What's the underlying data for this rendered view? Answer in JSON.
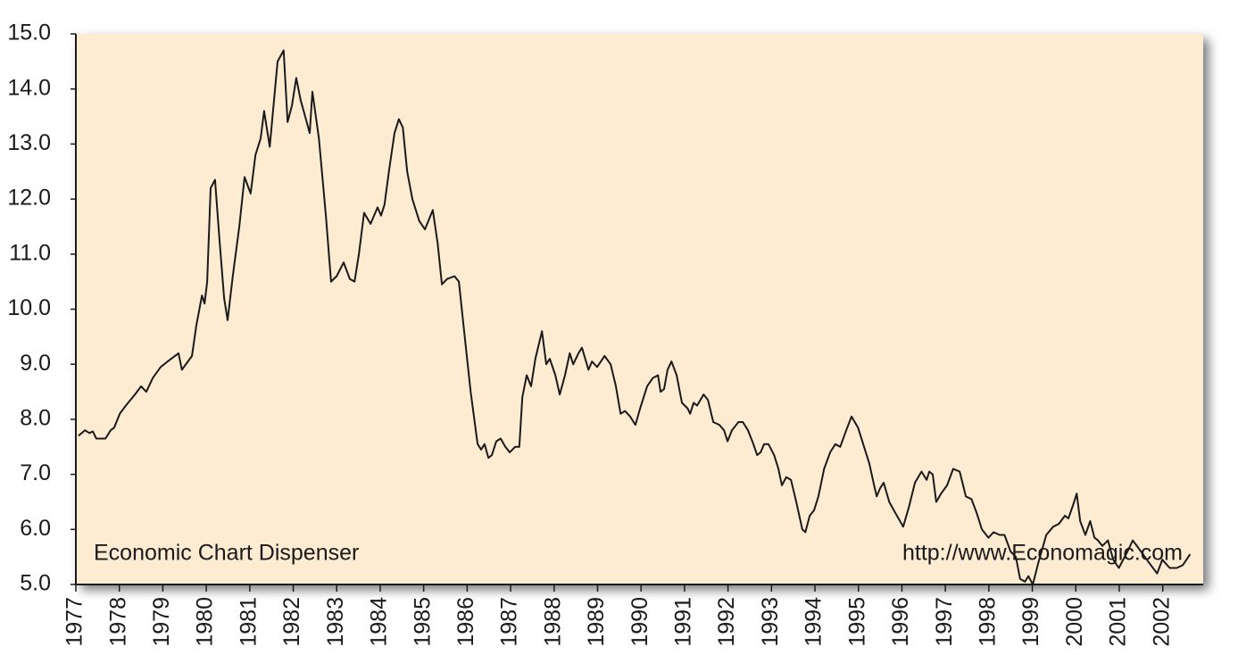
{
  "chart_data": {
    "type": "line",
    "annotations": [
      "Economic Chart Dispenser",
      "http://www.Economagic.com"
    ],
    "x": [
      1977.06,
      1977.21,
      1977.31,
      1977.39,
      1977.47,
      1977.68,
      1977.8,
      1977.88,
      1978.01,
      1978.15,
      1978.36,
      1978.5,
      1978.62,
      1978.77,
      1978.95,
      1979.11,
      1979.36,
      1979.44,
      1979.67,
      1979.77,
      1979.9,
      1979.96,
      1980.02,
      1980.1,
      1980.2,
      1980.31,
      1980.41,
      1980.49,
      1980.61,
      1980.76,
      1980.88,
      1981.02,
      1981.13,
      1981.25,
      1981.33,
      1981.46,
      1981.64,
      1981.78,
      1981.87,
      1981.97,
      1982.07,
      1982.17,
      1982.38,
      1982.44,
      1982.59,
      1982.75,
      1982.87,
      1983.0,
      1983.16,
      1983.3,
      1983.41,
      1983.51,
      1983.63,
      1983.78,
      1983.94,
      1984.02,
      1984.1,
      1984.2,
      1984.33,
      1984.43,
      1984.52,
      1984.62,
      1984.74,
      1984.9,
      1985.03,
      1985.21,
      1985.32,
      1985.42,
      1985.54,
      1985.71,
      1985.81,
      1985.93,
      1986.08,
      1986.24,
      1986.32,
      1986.4,
      1986.49,
      1986.57,
      1986.67,
      1986.77,
      1986.88,
      1986.98,
      1987.1,
      1987.2,
      1987.27,
      1987.37,
      1987.47,
      1987.57,
      1987.72,
      1987.82,
      1987.9,
      1988.03,
      1988.13,
      1988.25,
      1988.36,
      1988.44,
      1988.56,
      1988.64,
      1988.79,
      1988.87,
      1988.99,
      1989.16,
      1989.3,
      1989.42,
      1989.53,
      1989.63,
      1989.75,
      1989.87,
      1989.98,
      1990.14,
      1990.27,
      1990.39,
      1990.45,
      1990.53,
      1990.61,
      1990.7,
      1990.82,
      1990.94,
      1991.07,
      1991.13,
      1991.21,
      1991.29,
      1991.44,
      1991.54,
      1991.66,
      1991.8,
      1991.91,
      1991.99,
      1992.09,
      1992.24,
      1992.34,
      1992.46,
      1992.56,
      1992.67,
      1992.75,
      1992.83,
      1992.93,
      1993.06,
      1993.16,
      1993.24,
      1993.34,
      1993.45,
      1993.57,
      1993.71,
      1993.78,
      1993.88,
      1993.98,
      1994.08,
      1994.21,
      1994.35,
      1994.47,
      1994.58,
      1994.72,
      1994.84,
      1994.99,
      1995.09,
      1995.25,
      1995.36,
      1995.42,
      1995.5,
      1995.58,
      1995.71,
      1995.85,
      1996.03,
      1996.16,
      1996.3,
      1996.45,
      1996.57,
      1996.63,
      1996.71,
      1996.79,
      1996.9,
      1997.04,
      1997.18,
      1997.33,
      1997.47,
      1997.6,
      1997.72,
      1997.84,
      1997.99,
      1998.11,
      1998.25,
      1998.36,
      1998.5,
      1998.62,
      1998.72,
      1998.83,
      1998.91,
      1999.01,
      1999.14,
      1999.32,
      1999.48,
      1999.61,
      1999.75,
      1999.83,
      1999.94,
      2000.02,
      2000.1,
      2000.22,
      2000.33,
      2000.43,
      2000.51,
      2000.61,
      2000.74,
      2000.86,
      2000.99,
      2001.19,
      2001.31,
      2001.5,
      2001.68,
      2001.87,
      2001.99,
      2002.16,
      2002.32,
      2002.46,
      2002.63
    ],
    "series": [
      {
        "color": "#1a1a1a",
        "values": [
          7.7,
          7.8,
          7.75,
          7.78,
          7.65,
          7.65,
          7.8,
          7.85,
          8.1,
          8.25,
          8.45,
          8.6,
          8.5,
          8.75,
          8.95,
          9.05,
          9.2,
          8.9,
          9.15,
          9.7,
          10.25,
          10.1,
          10.5,
          12.2,
          12.35,
          11.2,
          10.2,
          9.8,
          10.6,
          11.5,
          12.4,
          12.1,
          12.8,
          13.1,
          13.6,
          12.95,
          14.5,
          14.7,
          13.4,
          13.7,
          14.2,
          13.8,
          13.2,
          13.95,
          13.1,
          11.7,
          10.5,
          10.6,
          10.85,
          10.55,
          10.5,
          11.0,
          11.75,
          11.55,
          11.85,
          11.7,
          11.9,
          12.5,
          13.2,
          13.45,
          13.3,
          12.5,
          12.0,
          11.6,
          11.45,
          11.8,
          11.2,
          10.45,
          10.55,
          10.6,
          10.5,
          9.6,
          8.5,
          7.55,
          7.45,
          7.55,
          7.3,
          7.35,
          7.6,
          7.65,
          7.5,
          7.4,
          7.5,
          7.5,
          8.4,
          8.8,
          8.6,
          9.1,
          9.6,
          9.0,
          9.1,
          8.8,
          8.45,
          8.8,
          9.2,
          9.0,
          9.2,
          9.3,
          8.9,
          9.05,
          8.95,
          9.15,
          9.0,
          8.6,
          8.1,
          8.15,
          8.05,
          7.9,
          8.2,
          8.6,
          8.75,
          8.8,
          8.5,
          8.55,
          8.9,
          9.05,
          8.8,
          8.3,
          8.2,
          8.1,
          8.3,
          8.25,
          8.45,
          8.35,
          7.95,
          7.9,
          7.8,
          7.6,
          7.8,
          7.95,
          7.95,
          7.8,
          7.6,
          7.35,
          7.4,
          7.55,
          7.55,
          7.35,
          7.1,
          6.8,
          6.95,
          6.9,
          6.5,
          6.0,
          5.95,
          6.25,
          6.35,
          6.6,
          7.1,
          7.4,
          7.55,
          7.5,
          7.8,
          8.05,
          7.85,
          7.6,
          7.2,
          6.8,
          6.6,
          6.75,
          6.85,
          6.5,
          6.3,
          6.05,
          6.4,
          6.85,
          7.05,
          6.9,
          7.05,
          7.0,
          6.5,
          6.65,
          6.8,
          7.1,
          7.05,
          6.6,
          6.55,
          6.3,
          6.0,
          5.85,
          5.95,
          5.9,
          5.9,
          5.6,
          5.5,
          5.1,
          5.05,
          5.15,
          5.0,
          5.4,
          5.9,
          6.05,
          6.1,
          6.25,
          6.2,
          6.45,
          6.65,
          6.15,
          5.9,
          6.15,
          5.85,
          5.8,
          5.7,
          5.8,
          5.45,
          5.3,
          5.6,
          5.8,
          5.6,
          5.4,
          5.2,
          5.45,
          5.3,
          5.3,
          5.35,
          5.55
        ]
      }
    ],
    "xlim": [
      1977,
      2002.93
    ],
    "xticks": [
      1977,
      1978,
      1979,
      1980,
      1981,
      1982,
      1983,
      1984,
      1985,
      1986,
      1987,
      1988,
      1989,
      1990,
      1991,
      1992,
      1993,
      1994,
      1995,
      1996,
      1997,
      1998,
      1999,
      2000,
      2001,
      2002
    ],
    "ylim": [
      5,
      15
    ],
    "yticks": [
      {
        "value": 5,
        "label": "5.0"
      },
      {
        "value": 6,
        "label": "6.0"
      },
      {
        "value": 7,
        "label": "7.0"
      },
      {
        "value": 8,
        "label": "8.0"
      },
      {
        "value": 9,
        "label": "9.0"
      },
      {
        "value": 10,
        "label": "10.0"
      },
      {
        "value": 11,
        "label": "11.0"
      },
      {
        "value": 12,
        "label": "12.0"
      },
      {
        "value": 13,
        "label": "13.0"
      },
      {
        "value": 14,
        "label": "14.0"
      },
      {
        "value": 15,
        "label": "15.0"
      }
    ],
    "background": "#fdebd2"
  }
}
